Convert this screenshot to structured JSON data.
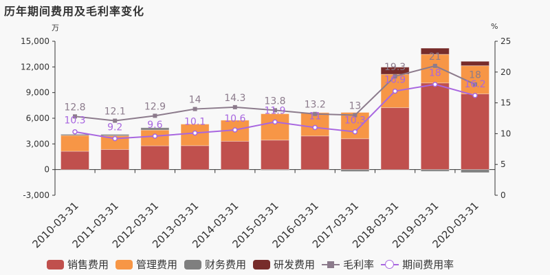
{
  "title": "历年期间费用及毛利率变化",
  "left_unit": "万",
  "right_unit": "%",
  "colors": {
    "sales": "#c0504d",
    "admin": "#f79646",
    "finance": "#7f7f7f",
    "rnd": "#772c2a",
    "gross_margin": "#8c7b8c",
    "expense_rate": "#a866e0",
    "background": "#f8f8f8"
  },
  "legend": [
    {
      "key": "sales",
      "label": "销售费用",
      "type": "bar"
    },
    {
      "key": "admin",
      "label": "管理费用",
      "type": "bar"
    },
    {
      "key": "finance",
      "label": "财务费用",
      "type": "bar"
    },
    {
      "key": "rnd",
      "label": "研发费用",
      "type": "bar"
    },
    {
      "key": "gross_margin",
      "label": "毛利率",
      "type": "line-square"
    },
    {
      "key": "expense_rate",
      "label": "期间费用率",
      "type": "line-circle"
    }
  ],
  "chart_data": {
    "type": "bar",
    "stacked": true,
    "title": "历年期间费用及毛利率变化",
    "xlabel": "",
    "ylabel": "万",
    "y2label": "%",
    "ylim": [
      -3000,
      15000
    ],
    "y2lim": [
      0,
      25
    ],
    "yticks": [
      "-3,000",
      "0",
      "3,000",
      "6,000",
      "9,000",
      "12,000",
      "15,000"
    ],
    "y2ticks": [
      "0",
      "5",
      "10",
      "15",
      "20",
      "25"
    ],
    "grid": false,
    "legend_position": "bottom",
    "categories": [
      "2010-03-31",
      "2011-03-31",
      "2012-03-31",
      "2013-03-31",
      "2014-03-31",
      "2015-03-31",
      "2016-03-31",
      "2017-03-31",
      "2018-03-31",
      "2019-03-31",
      "2020-03-31"
    ],
    "series": [
      {
        "name": "销售费用",
        "type": "bar",
        "axis": "left",
        "values": [
          2140,
          2350,
          2780,
          2800,
          3310,
          3450,
          3930,
          3610,
          7240,
          10130,
          8850
        ]
      },
      {
        "name": "管理费用",
        "type": "bar",
        "axis": "left",
        "values": [
          1850,
          1600,
          1845,
          2510,
          2460,
          3070,
          2730,
          3070,
          3900,
          3340,
          3290
        ]
      },
      {
        "name": "财务费用",
        "type": "bar",
        "axis": "left",
        "values": [
          130,
          160,
          265,
          0,
          0,
          -30,
          0,
          -220,
          0,
          -200,
          -350
        ]
      },
      {
        "name": "研发费用",
        "type": "bar",
        "axis": "left",
        "values": [
          0,
          0,
          0,
          0,
          0,
          0,
          0,
          0,
          830,
          720,
          510
        ]
      },
      {
        "name": "毛利率",
        "type": "line",
        "axis": "right",
        "values": [
          12.8,
          12.1,
          12.9,
          14,
          14.3,
          13.8,
          13.2,
          13,
          19.3,
          21,
          18
        ],
        "labels": [
          "12.8",
          "12.1",
          "12.9",
          "14",
          "14.3",
          "13.8",
          "13.2",
          "13",
          "19.3",
          "21",
          "18"
        ]
      },
      {
        "name": "期间费用率",
        "type": "line",
        "axis": "right",
        "values": [
          10.3,
          9.2,
          9.6,
          10.1,
          10.6,
          11.9,
          11,
          10.3,
          16.9,
          18,
          16.2
        ],
        "labels": [
          "10.3",
          "9.2",
          "9.6",
          "10.1",
          "10.6",
          "11.9",
          "11",
          "10.3",
          "16.9",
          "18",
          "16.2"
        ]
      }
    ]
  }
}
